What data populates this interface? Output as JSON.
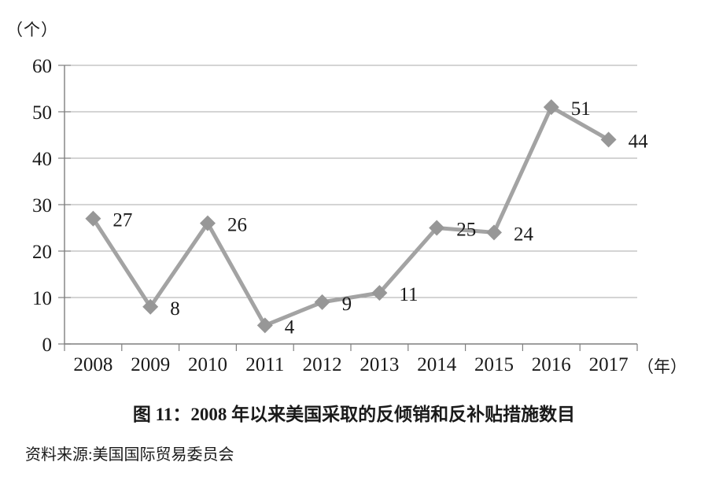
{
  "chart_data": {
    "type": "line",
    "title": "图 11：2008 年以来美国采取的反倾销和反补贴措施数目",
    "source": "资料来源:美国国际贸易委员会",
    "ylabel": "（个）",
    "xlabel": "（年）",
    "categories": [
      "2008",
      "2009",
      "2010",
      "2011",
      "2012",
      "2013",
      "2014",
      "2015",
      "2016",
      "2017"
    ],
    "values": [
      27,
      8,
      26,
      4,
      9,
      11,
      25,
      24,
      51,
      44
    ],
    "ylim": [
      0,
      60
    ],
    "ytick_step": 10,
    "yticks": [
      0,
      10,
      20,
      30,
      40,
      50,
      60
    ],
    "grid": true,
    "legend": "none",
    "marker": "diamond",
    "line_color": "#a3a3a3",
    "marker_color": "#979797",
    "grid_color": "#a8a8a8",
    "axis_color": "#7f7f7f",
    "text_color": "#1a1a1a"
  }
}
